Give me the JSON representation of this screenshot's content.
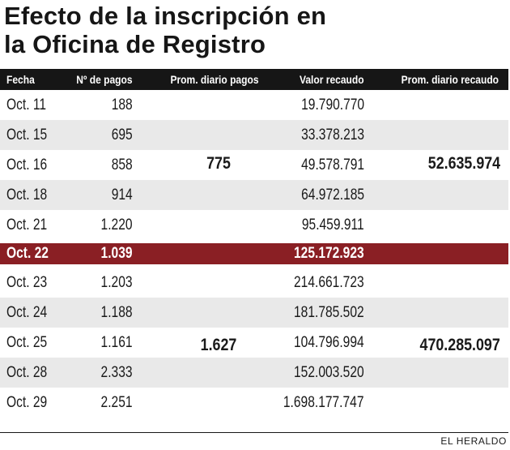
{
  "title": {
    "line1": "Efecto de la inscripción en",
    "line2": "la Oficina de Registro"
  },
  "columns": {
    "fecha": "Fecha",
    "pagos": "Nº de pagos",
    "prom_pagos": "Prom. diario pagos",
    "valor": "Valor recaudo",
    "prom_recaudo": "Prom. diario recaudo"
  },
  "rows": [
    {
      "fecha": "Oct. 11",
      "pagos": "188",
      "valor": "19.790.770"
    },
    {
      "fecha": "Oct. 15",
      "pagos": "695",
      "valor": "33.378.213"
    },
    {
      "fecha": "Oct. 16",
      "pagos": "858",
      "valor": "49.578.791"
    },
    {
      "fecha": "Oct. 18",
      "pagos": "914",
      "valor": "64.972.185"
    },
    {
      "fecha": "Oct. 21",
      "pagos": "1.220",
      "valor": "95.459.911"
    },
    {
      "fecha": "Oct. 22",
      "pagos": "1.039",
      "valor": "125.172.923"
    },
    {
      "fecha": "Oct. 23",
      "pagos": "1.203",
      "valor": "214.661.723"
    },
    {
      "fecha": "Oct. 24",
      "pagos": "1.188",
      "valor": "181.785.502"
    },
    {
      "fecha": "Oct. 25",
      "pagos": "1.161",
      "valor": "104.796.994"
    },
    {
      "fecha": "Oct. 28",
      "pagos": "2.333",
      "valor": "152.003.520"
    },
    {
      "fecha": "Oct. 29",
      "pagos": "2.251",
      "valor": "1.698.177.747"
    }
  ],
  "summary": {
    "before_prom_pagos": "775",
    "before_prom_recaudo": "52.635.974",
    "after_prom_pagos": "1.627",
    "after_prom_recaudo": "470.285.097"
  },
  "credit": "EL HERALDO"
}
